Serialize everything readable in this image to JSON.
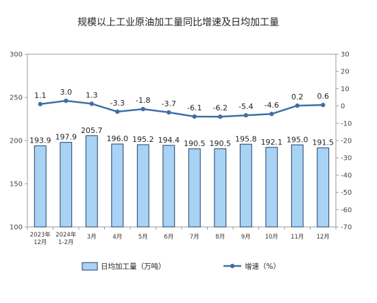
{
  "chart_data": {
    "type": "bar+line",
    "title": "规模以上工业原油加工量同比增速及日均加工量",
    "categories": [
      [
        "2023年",
        "12月"
      ],
      [
        "2024年",
        "1-2月"
      ],
      [
        "3月"
      ],
      [
        "4月"
      ],
      [
        "5月"
      ],
      [
        "6月"
      ],
      [
        "7月"
      ],
      [
        "8月"
      ],
      [
        "9月"
      ],
      [
        "10月"
      ],
      [
        "11月"
      ],
      [
        "12月"
      ]
    ],
    "series": [
      {
        "name": "日均加工量（万吨）",
        "type": "bar",
        "axis": "left",
        "values": [
          193.9,
          197.9,
          205.7,
          196.0,
          195.2,
          194.4,
          190.5,
          190.5,
          195.8,
          192.1,
          195.0,
          191.5
        ],
        "labels": [
          "193.9",
          "197.9",
          "205.7",
          "196.0",
          "195.2",
          "194.4",
          "190.5",
          "190.5",
          "195.8",
          "192.1",
          "195.0",
          "191.5"
        ],
        "color": "#a9d3f5",
        "border": "#1f3f66"
      },
      {
        "name": "增速（%）",
        "type": "line",
        "axis": "right",
        "values": [
          1.1,
          3.0,
          1.3,
          -3.3,
          -1.8,
          -3.7,
          -6.1,
          -6.2,
          -5.4,
          -4.6,
          0.2,
          0.6
        ],
        "labels": [
          "1.1",
          "3.0",
          "1.3",
          "-3.3",
          "-1.8",
          "-3.7",
          "-6.1",
          "-6.2",
          "-5.4",
          "-4.6",
          "0.2",
          "0.6"
        ],
        "color": "#3f6fa6"
      }
    ],
    "y_left": {
      "range": [
        100,
        300
      ],
      "ticks": [
        "100",
        "150",
        "200",
        "250",
        "300"
      ]
    },
    "y_right": {
      "range": [
        -70,
        30
      ],
      "ticks": [
        "30",
        "20",
        "10",
        "0",
        "-10",
        "-20",
        "-30",
        "-40",
        "-50",
        "-60",
        "-70"
      ]
    },
    "grid": false,
    "legend_position": "bottom"
  }
}
